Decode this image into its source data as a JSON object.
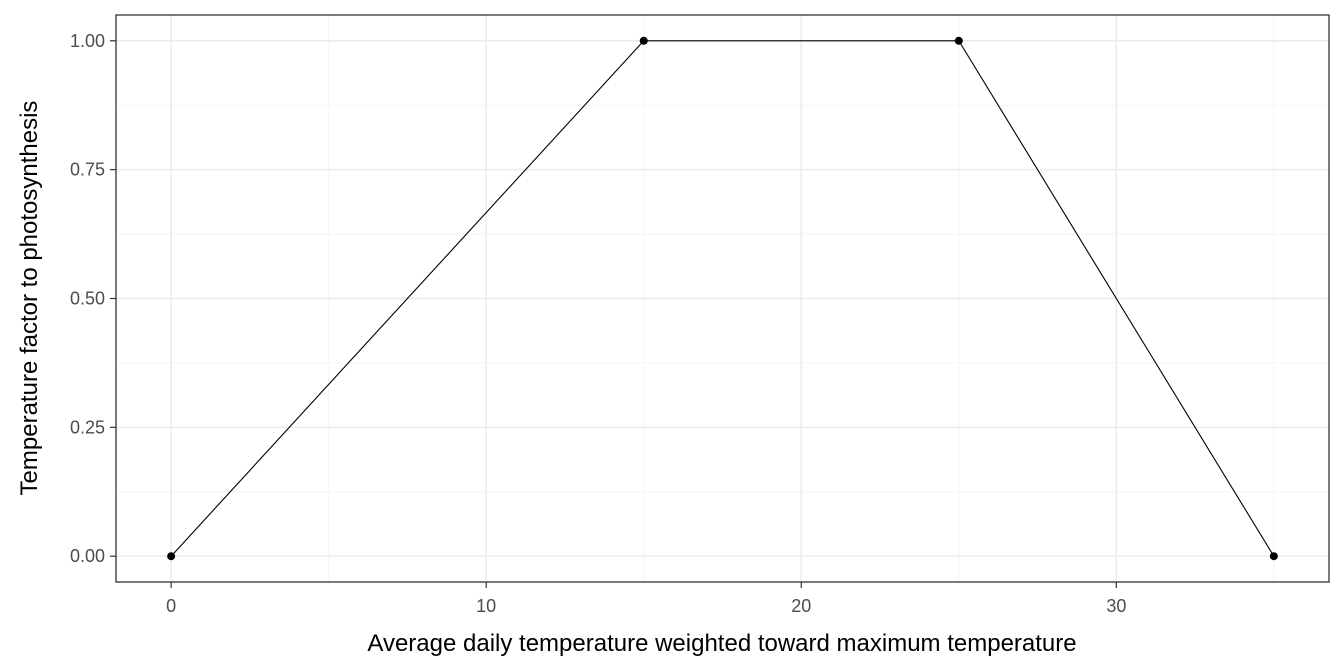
{
  "chart_data": {
    "type": "line",
    "title": "",
    "xlabel": "Average daily temperature weighted toward maximum temperature",
    "ylabel": "Temperature factor to photosynthesis",
    "xlim": [
      -1.75,
      36.75
    ],
    "ylim": [
      -0.05,
      1.05
    ],
    "x_ticks": [
      0,
      10,
      20,
      30
    ],
    "x_tick_labels": [
      "0",
      "10",
      "20",
      "30"
    ],
    "x_minor_ticks": [
      5,
      15,
      25,
      35
    ],
    "y_ticks": [
      0,
      0.25,
      0.5,
      0.75,
      1.0
    ],
    "y_tick_labels": [
      "0.00",
      "0.25",
      "0.50",
      "0.75",
      "1.00"
    ],
    "y_minor_ticks": [
      0.125,
      0.375,
      0.625,
      0.875
    ],
    "grid": true,
    "legend": "none",
    "series": [
      {
        "x": [
          0,
          15,
          25,
          35
        ],
        "y": [
          0,
          1,
          1,
          0
        ],
        "color": "#000000",
        "markers": true
      }
    ],
    "colors": {
      "line": "#000000",
      "grid_major": "#ebebeb",
      "grid_minor": "#f5f5f5",
      "panel_border": "#333333",
      "tick_text": "#4d4d4d"
    }
  }
}
